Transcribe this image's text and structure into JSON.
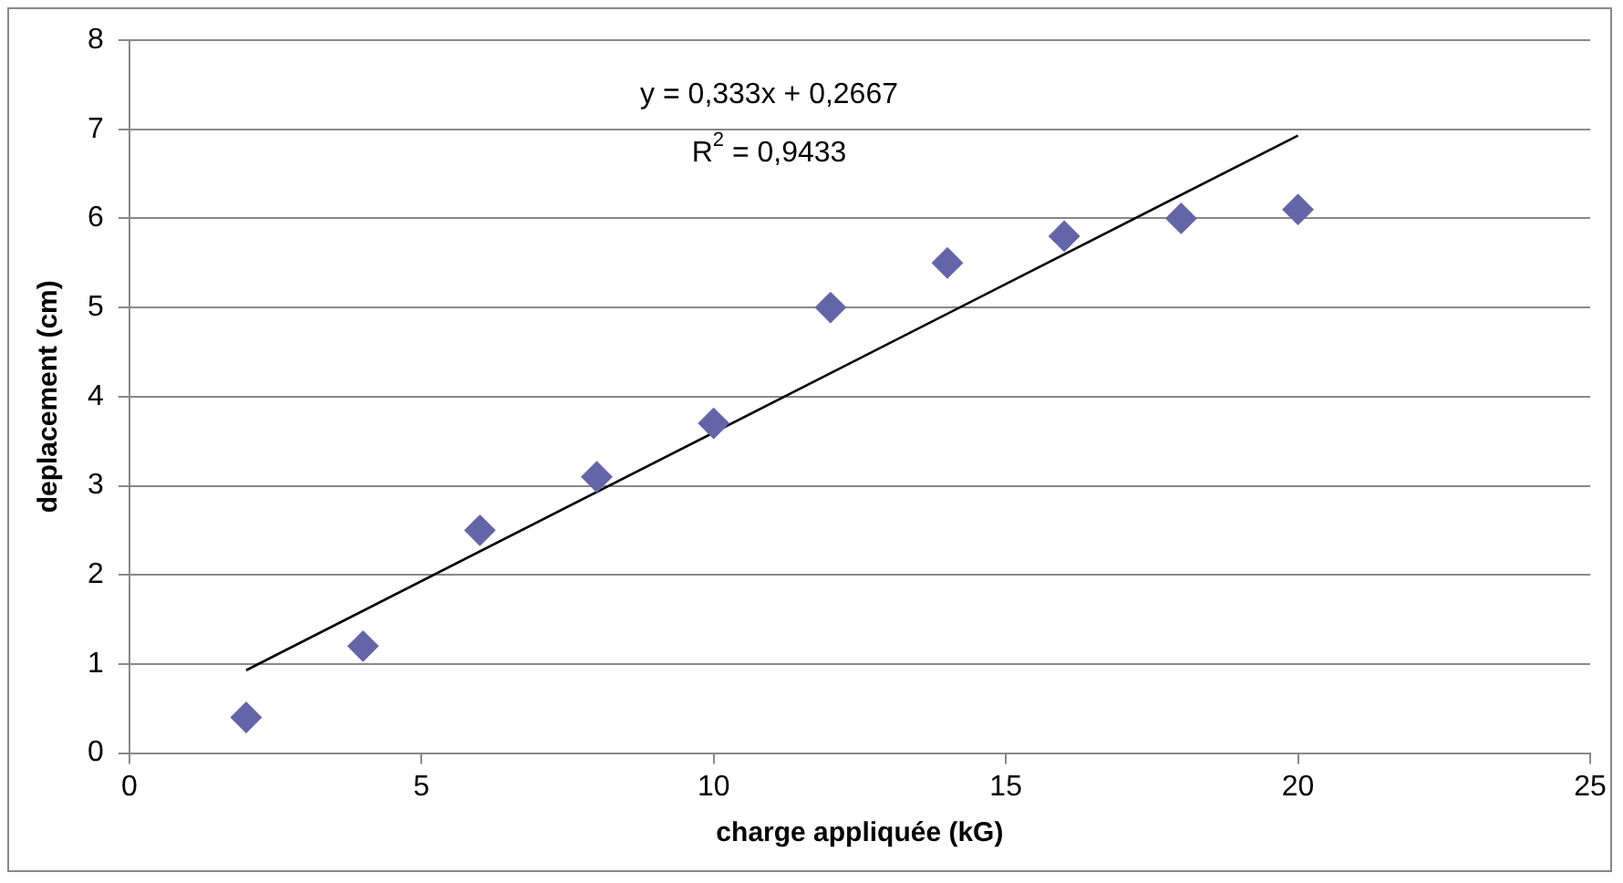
{
  "chart_data": {
    "type": "scatter",
    "xlabel": "charge appliquée (kG)",
    "ylabel": "deplacement (cm)",
    "xlim": [
      0,
      25
    ],
    "xticks": [
      0,
      5,
      10,
      15,
      20,
      25
    ],
    "ylim": [
      0,
      8
    ],
    "yticks": [
      0,
      1,
      2,
      3,
      4,
      5,
      6,
      7,
      8
    ],
    "grid": "y",
    "legend": false,
    "series": [
      {
        "marker": "diamond",
        "color": "#6464a8",
        "x": [
          2,
          4,
          6,
          8,
          10,
          12,
          14,
          16,
          18,
          20
        ],
        "values": [
          0.4,
          1.2,
          2.5,
          3.1,
          3.7,
          5.0,
          5.5,
          5.8,
          6.0,
          6.1
        ]
      },
      {
        "type": "line",
        "marker": "none",
        "color": "#000000",
        "x": [
          2,
          20
        ],
        "values": [
          0.93,
          6.93
        ]
      }
    ],
    "annotations": [
      "y = 0,333x + 0,2667",
      "R$^{2}$ = 0,9433"
    ]
  }
}
